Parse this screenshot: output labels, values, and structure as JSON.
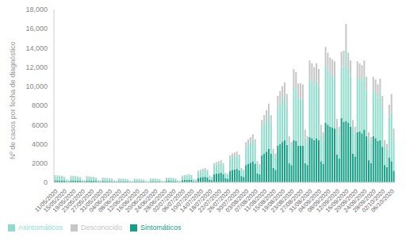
{
  "chart_data": {
    "type": "bar",
    "y_label": "Nº de casos por fecha de diagnóstico",
    "stacked": true,
    "grid": false,
    "legend": "bottom-left",
    "categories": [
      "11/05/2020",
      null,
      null,
      null,
      "15/05/2020",
      null,
      null,
      null,
      "19/05/2020",
      null,
      null,
      null,
      "23/05/2020",
      null,
      null,
      null,
      "27/05/2020",
      null,
      null,
      null,
      "31/05/2020",
      null,
      null,
      null,
      "04/06/2020",
      null,
      null,
      null,
      "08/06/2020",
      null,
      null,
      null,
      "12/06/2020",
      null,
      null,
      null,
      "16/06/2020",
      null,
      null,
      null,
      "20/06/2020",
      null,
      null,
      null,
      "24/06/2020",
      null,
      null,
      null,
      "28/06/2020",
      null,
      null,
      null,
      "02/07/2020",
      null,
      null,
      null,
      "06/07/2020",
      null,
      null,
      null,
      "10/07/2020",
      null,
      null,
      null,
      "14/07/2020",
      null,
      null,
      null,
      "18/07/2020",
      null,
      null,
      null,
      "22/07/2020",
      null,
      null,
      null,
      "26/07/2020",
      null,
      null,
      null,
      "30/07/2020",
      null,
      null,
      null,
      "03/08/2020",
      null,
      null,
      null,
      "07/08/2020",
      null,
      null,
      null,
      "11/08/2020",
      null,
      null,
      null,
      "15/08/2020",
      null,
      null,
      null,
      "19/08/2020",
      null,
      null,
      null,
      "23/08/2020",
      null,
      null,
      null,
      "27/08/2020",
      null,
      null,
      null,
      "31/08/2020",
      null,
      null,
      null,
      "04/09/2020",
      null,
      null,
      null,
      "08/09/2020",
      null,
      null,
      null,
      "12/09/2020",
      null,
      null,
      null,
      "16/09/2020",
      null,
      null,
      null,
      "20/09/2020",
      null,
      null,
      null,
      "24/09/2020",
      null,
      null,
      null,
      "28/09/2020",
      null,
      null,
      null,
      "02/10/2020",
      null,
      null,
      null,
      "06/10/2020",
      null
    ],
    "series": [
      {
        "name": "Sintomáticos",
        "color": "#13a085",
        "values": [
          220,
          210,
          200,
          200,
          180,
          90,
          70,
          200,
          200,
          190,
          180,
          160,
          80,
          70,
          190,
          180,
          170,
          170,
          150,
          70,
          60,
          150,
          140,
          130,
          130,
          120,
          60,
          50,
          120,
          120,
          110,
          110,
          100,
          50,
          40,
          110,
          110,
          100,
          100,
          90,
          40,
          40,
          120,
          130,
          120,
          110,
          100,
          50,
          40,
          150,
          160,
          150,
          140,
          130,
          60,
          50,
          230,
          250,
          270,
          290,
          250,
          120,
          100,
          450,
          500,
          550,
          600,
          500,
          270,
          230,
          850,
          900,
          950,
          1000,
          850,
          420,
          380,
          1200,
          1300,
          1350,
          1400,
          1250,
          650,
          560,
          1800,
          1950,
          2050,
          2200,
          1950,
          950,
          820,
          2800,
          3000,
          3200,
          3500,
          3000,
          1500,
          1300,
          3800,
          4000,
          4200,
          4400,
          3900,
          2000,
          1800,
          4400,
          4300,
          3800,
          3800,
          3800,
          2000,
          1800,
          4700,
          4600,
          4400,
          4600,
          4400,
          2200,
          1900,
          6200,
          6000,
          5800,
          5700,
          5600,
          2900,
          2500,
          6700,
          6300,
          6400,
          6200,
          5800,
          3000,
          2700,
          5200,
          5300,
          5100,
          5500,
          4800,
          2300,
          2000,
          4800,
          4600,
          4300,
          4400,
          3700,
          1800,
          1600,
          2600,
          2200,
          1200
        ]
      },
      {
        "name": "Asintomáticos",
        "color": "#8fdccc",
        "values": [
          420,
          400,
          390,
          380,
          330,
          170,
          140,
          400,
          380,
          360,
          350,
          310,
          160,
          130,
          370,
          350,
          340,
          330,
          280,
          140,
          110,
          280,
          270,
          260,
          250,
          220,
          110,
          90,
          240,
          230,
          220,
          210,
          190,
          100,
          80,
          220,
          210,
          210,
          200,
          170,
          90,
          70,
          230,
          240,
          230,
          220,
          200,
          90,
          70,
          270,
          280,
          270,
          260,
          240,
          110,
          90,
          390,
          410,
          440,
          460,
          410,
          190,
          160,
          600,
          640,
          680,
          720,
          640,
          340,
          290,
          900,
          950,
          1000,
          1030,
          900,
          450,
          400,
          1250,
          1330,
          1380,
          1420,
          1300,
          670,
          580,
          1900,
          2000,
          2100,
          2230,
          2000,
          980,
          850,
          2900,
          3100,
          3300,
          3600,
          3100,
          1550,
          1300,
          4000,
          4200,
          4400,
          4600,
          4100,
          2100,
          1850,
          5500,
          5400,
          4900,
          4900,
          4800,
          2600,
          2250,
          6000,
          5900,
          5700,
          5900,
          5600,
          2800,
          2450,
          6000,
          5700,
          5500,
          5400,
          5300,
          2800,
          2500,
          5200,
          5700,
          7500,
          5700,
          5300,
          2700,
          2400,
          5700,
          5500,
          5500,
          5600,
          4800,
          2300,
          2100,
          4700,
          4700,
          4500,
          4900,
          4000,
          2000,
          1800,
          4200,
          5000,
          3200
        ]
      },
      {
        "name": "Desconocido",
        "color": "#c6c6c6",
        "values": [
          110,
          110,
          110,
          100,
          90,
          40,
          40,
          100,
          100,
          100,
          90,
          80,
          40,
          30,
          90,
          90,
          90,
          80,
          70,
          40,
          30,
          70,
          70,
          70,
          60,
          60,
          30,
          20,
          60,
          50,
          50,
          50,
          40,
          20,
          20,
          50,
          50,
          50,
          50,
          40,
          20,
          10,
          50,
          50,
          50,
          50,
          40,
          20,
          20,
          60,
          60,
          60,
          60,
          50,
          30,
          20,
          80,
          90,
          90,
          100,
          90,
          40,
          40,
          150,
          160,
          170,
          180,
          160,
          90,
          80,
          250,
          250,
          250,
          270,
          250,
          130,
          120,
          350,
          370,
          370,
          380,
          350,
          180,
          160,
          500,
          550,
          550,
          570,
          550,
          270,
          230,
          800,
          900,
          1000,
          1100,
          900,
          450,
          400,
          1200,
          1300,
          1400,
          1400,
          1200,
          700,
          550,
          1900,
          1800,
          1600,
          1600,
          1600,
          900,
          750,
          2000,
          1900,
          1900,
          1900,
          1800,
          1000,
          850,
          1900,
          1800,
          1700,
          1700,
          1700,
          900,
          800,
          1700,
          1700,
          2600,
          1600,
          1600,
          800,
          700,
          1700,
          1600,
          1600,
          1600,
          1400,
          600,
          600,
          1500,
          1400,
          1400,
          1500,
          1300,
          600,
          600,
          1300,
          2000,
          1200
        ]
      }
    ],
    "ylim": [
      0,
      18000
    ],
    "yticks": [
      0,
      2000,
      4000,
      6000,
      8000,
      {
        "value": 10000,
        "label": "10,000"
      },
      {
        "value": 12000,
        "label": "12,000"
      },
      {
        "value": 14000,
        "label": "14,000"
      },
      {
        "value": 16000,
        "label": "16,000"
      },
      {
        "value": 18000,
        "label": "18,000"
      }
    ]
  }
}
